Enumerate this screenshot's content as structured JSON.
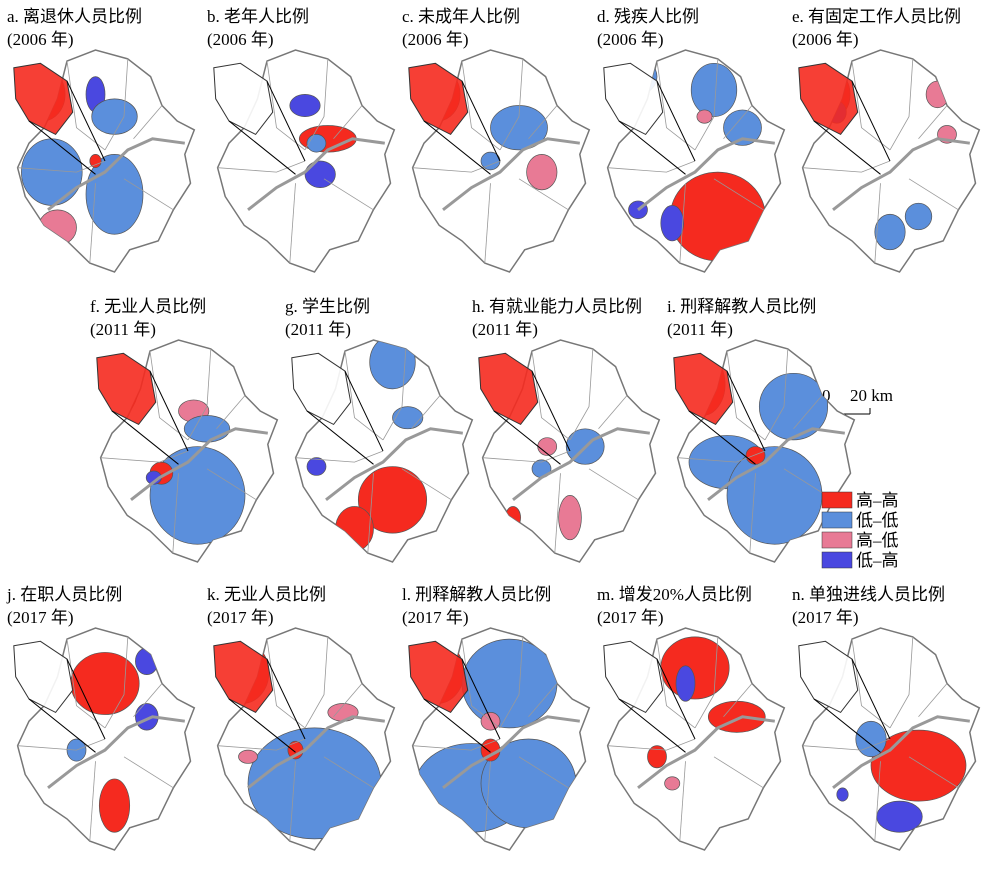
{
  "panels": [
    {
      "label": "a. 离退休人员比例",
      "year": "(2006 年)"
    },
    {
      "label": "b. 老年人比例",
      "year": "(2006 年)"
    },
    {
      "label": "c. 未成年人比例",
      "year": "(2006 年)"
    },
    {
      "label": "d. 残疾人比例",
      "year": "(2006 年)"
    },
    {
      "label": "e. 有固定工作人员比例",
      "year": "(2006 年)"
    },
    {
      "label": "f. 无业人员比例",
      "year": "(2011 年)"
    },
    {
      "label": "g. 学生比例",
      "year": "(2011 年)"
    },
    {
      "label": "h. 有就业能力人员比例",
      "year": "(2011 年)"
    },
    {
      "label": "i. 刑释解教人员比例",
      "year": "(2011 年)"
    },
    {
      "label": "j. 在职人员比例",
      "year": "(2017 年)"
    },
    {
      "label": "k. 无业人员比例",
      "year": "(2017 年)"
    },
    {
      "label": "l. 刑释解教人员比例",
      "year": "(2017 年)"
    },
    {
      "label": "m. 增发20%人员比例",
      "year": "(2017 年)"
    },
    {
      "label": "n. 单独进线人员比例",
      "year": "(2017 年)"
    }
  ],
  "legend": [
    {
      "label": "高–高",
      "color": "#f52a1f"
    },
    {
      "label": "低–低",
      "color": "#5b8fdc"
    },
    {
      "label": "高–低",
      "color": "#e87a95"
    },
    {
      "label": "低–高",
      "color": "#4a48e0"
    }
  ],
  "scale_bar": {
    "start": "0",
    "end": "20 km"
  }
}
